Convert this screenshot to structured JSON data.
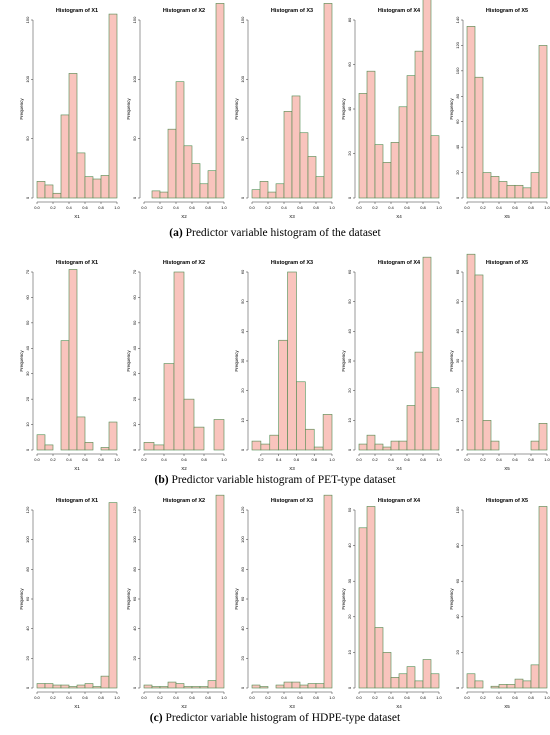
{
  "captions": [
    {
      "letter": "a",
      "text": "Predictor variable histogram of the dataset"
    },
    {
      "letter": "b",
      "text": "Predictor variable histogram of PET-type dataset"
    },
    {
      "letter": "c",
      "text": "Predictor variable histogram of HDPE-type dataset"
    }
  ],
  "style": {
    "bar_fill": "#f9c4bd",
    "bar_stroke": "#4f8a4f",
    "axis_color": "#333333"
  },
  "chart_data": [
    {
      "type": "bar",
      "title": "Histogram of X1",
      "xlabel": "X1",
      "ylabel": "Frequency",
      "bin_start": 0.0,
      "bin_width": 0.1,
      "xlim": [
        0,
        1
      ],
      "xticks": [
        0.0,
        0.2,
        0.4,
        0.6,
        0.8,
        1.0
      ],
      "xtick_labels": [
        "0.0",
        "0.2",
        "0.4",
        "0.6",
        "0.8",
        "1.0"
      ],
      "ylim": [
        0,
        150
      ],
      "yticks": [
        0,
        50,
        100,
        150
      ],
      "ytick_labels": [
        "0",
        "50",
        "100",
        "150"
      ],
      "values": [
        14,
        11,
        4,
        70,
        105,
        38,
        18,
        16,
        19,
        155
      ]
    },
    {
      "type": "bar",
      "title": "Histogram of X2",
      "xlabel": "X2",
      "ylabel": "Frequency",
      "bin_start": 0.0,
      "bin_width": 0.1,
      "xlim": [
        0,
        1
      ],
      "xticks": [
        0.0,
        0.2,
        0.4,
        0.6,
        0.8,
        1.0
      ],
      "xtick_labels": [
        "0.0",
        "0.2",
        "0.4",
        "0.6",
        "0.8",
        "1.0"
      ],
      "ylim": [
        0,
        150
      ],
      "yticks": [
        0,
        50,
        100,
        150
      ],
      "ytick_labels": [
        "0",
        "50",
        "100",
        "150"
      ],
      "values": [
        0,
        6,
        5,
        58,
        98,
        44,
        29,
        12,
        23,
        164
      ]
    },
    {
      "type": "bar",
      "title": "Histogram of X3",
      "xlabel": "X3",
      "ylabel": "Frequency",
      "bin_start": 0.0,
      "bin_width": 0.1,
      "xlim": [
        0,
        1
      ],
      "xticks": [
        0.0,
        0.2,
        0.4,
        0.6,
        0.8,
        1.0
      ],
      "xtick_labels": [
        "0.0",
        "0.2",
        "0.4",
        "0.6",
        "0.8",
        "1.0"
      ],
      "ylim": [
        0,
        150
      ],
      "yticks": [
        0,
        50,
        100,
        150
      ],
      "ytick_labels": [
        "0",
        "50",
        "100",
        "150"
      ],
      "values": [
        7,
        14,
        5,
        12,
        73,
        86,
        55,
        35,
        18,
        164
      ]
    },
    {
      "type": "bar",
      "title": "Histogram of X4",
      "xlabel": "X4",
      "ylabel": "Frequency",
      "bin_start": 0.0,
      "bin_width": 0.1,
      "xlim": [
        0,
        1
      ],
      "xticks": [
        0.0,
        0.2,
        0.4,
        0.6,
        0.8,
        1.0
      ],
      "xtick_labels": [
        "0.0",
        "0.2",
        "0.4",
        "0.6",
        "0.8",
        "1.0"
      ],
      "ylim": [
        0,
        80
      ],
      "yticks": [
        0,
        20,
        40,
        60,
        80
      ],
      "ytick_labels": [
        "0",
        "20",
        "40",
        "60",
        "80"
      ],
      "values": [
        47,
        57,
        24,
        16,
        25,
        41,
        55,
        66,
        90,
        28
      ]
    },
    {
      "type": "bar",
      "title": "Histogram of X5",
      "xlabel": "X5",
      "ylabel": "Frequency",
      "bin_start": 0.0,
      "bin_width": 0.1,
      "xlim": [
        0,
        1
      ],
      "xticks": [
        0.0,
        0.2,
        0.4,
        0.6,
        0.8,
        1.0
      ],
      "xtick_labels": [
        "0.0",
        "0.2",
        "0.4",
        "0.6",
        "0.8",
        "1.0"
      ],
      "ylim": [
        0,
        140
      ],
      "yticks": [
        0,
        20,
        40,
        60,
        80,
        100,
        120,
        140
      ],
      "ytick_labels": [
        "0",
        "20",
        "40",
        "60",
        "80",
        "100",
        "120",
        "140"
      ],
      "values": [
        135,
        95,
        20,
        17,
        13,
        10,
        10,
        8,
        20,
        120
      ]
    },
    {
      "type": "bar",
      "title": "Histogram of X1",
      "xlabel": "X1",
      "ylabel": "Frequency",
      "bin_start": 0.0,
      "bin_width": 0.1,
      "xlim": [
        0,
        1
      ],
      "xticks": [
        0.0,
        0.2,
        0.4,
        0.6,
        0.8,
        1.0
      ],
      "xtick_labels": [
        "0.0",
        "0.2",
        "0.4",
        "0.6",
        "0.8",
        "1.0"
      ],
      "ylim": [
        0,
        70
      ],
      "yticks": [
        0,
        10,
        20,
        30,
        40,
        50,
        60,
        70
      ],
      "ytick_labels": [
        "0",
        "10",
        "20",
        "30",
        "40",
        "50",
        "60",
        "70"
      ],
      "values": [
        6,
        2,
        0,
        43,
        71,
        13,
        3,
        0,
        1,
        11
      ]
    },
    {
      "type": "bar",
      "title": "Histogram of X2",
      "xlabel": "X2",
      "ylabel": "Frequency",
      "bin_start": 0.2,
      "bin_width": 0.1,
      "xlim": [
        0.2,
        1
      ],
      "xticks": [
        0.2,
        0.4,
        0.6,
        0.8,
        1.0
      ],
      "xtick_labels": [
        "0.2",
        "0.4",
        "0.6",
        "0.8",
        "1.0"
      ],
      "ylim": [
        0,
        70
      ],
      "yticks": [
        0,
        10,
        20,
        30,
        40,
        50,
        60,
        70
      ],
      "ytick_labels": [
        "0",
        "10",
        "20",
        "30",
        "40",
        "50",
        "60",
        "70"
      ],
      "values": [
        3,
        2,
        34,
        70,
        20,
        9,
        0,
        12
      ]
    },
    {
      "type": "bar",
      "title": "Histogram of X3",
      "xlabel": "X3",
      "ylabel": "Frequency",
      "bin_start": 0.1,
      "bin_width": 0.1,
      "xlim": [
        0.1,
        1
      ],
      "xticks": [
        0.2,
        0.4,
        0.6,
        0.8,
        1.0
      ],
      "xtick_labels": [
        "0.2",
        "0.4",
        "0.6",
        "0.8",
        "1.0"
      ],
      "ylim": [
        0,
        60
      ],
      "yticks": [
        0,
        10,
        20,
        30,
        40,
        50,
        60
      ],
      "ytick_labels": [
        "0",
        "10",
        "20",
        "30",
        "40",
        "50",
        "60"
      ],
      "values": [
        3,
        2,
        5,
        37,
        60,
        23,
        7,
        1,
        12
      ]
    },
    {
      "type": "bar",
      "title": "Histogram of X4",
      "xlabel": "X4",
      "ylabel": "Frequency",
      "bin_start": 0.0,
      "bin_width": 0.1,
      "xlim": [
        0,
        1
      ],
      "xticks": [
        0.0,
        0.2,
        0.4,
        0.6,
        0.8,
        1.0
      ],
      "xtick_labels": [
        "0.0",
        "0.2",
        "0.4",
        "0.6",
        "0.8",
        "1.0"
      ],
      "ylim": [
        0,
        60
      ],
      "yticks": [
        0,
        10,
        20,
        30,
        40,
        50,
        60
      ],
      "ytick_labels": [
        "0",
        "10",
        "20",
        "30",
        "40",
        "50",
        "60"
      ],
      "values": [
        2,
        5,
        2,
        1,
        3,
        3,
        15,
        33,
        65,
        21
      ]
    },
    {
      "type": "bar",
      "title": "Histogram of X5",
      "xlabel": "X5",
      "ylabel": "Frequency",
      "bin_start": 0.0,
      "bin_width": 0.1,
      "xlim": [
        0,
        1
      ],
      "xticks": [
        0.0,
        0.2,
        0.4,
        0.6,
        0.8,
        1.0
      ],
      "xtick_labels": [
        "0.0",
        "0.2",
        "0.4",
        "0.6",
        "0.8",
        "1.0"
      ],
      "ylim": [
        0,
        60
      ],
      "yticks": [
        0,
        10,
        20,
        30,
        40,
        50,
        60
      ],
      "ytick_labels": [
        "0",
        "10",
        "20",
        "30",
        "40",
        "50",
        "60"
      ],
      "values": [
        66,
        59,
        10,
        3,
        0,
        0,
        0,
        0,
        3,
        9
      ]
    },
    {
      "type": "bar",
      "title": "Histogram of X1",
      "xlabel": "X1",
      "ylabel": "Frequency",
      "bin_start": 0.0,
      "bin_width": 0.1,
      "xlim": [
        0,
        1
      ],
      "xticks": [
        0.0,
        0.2,
        0.4,
        0.6,
        0.8,
        1.0
      ],
      "xtick_labels": [
        "0.0",
        "0.2",
        "0.4",
        "0.6",
        "0.8",
        "1.0"
      ],
      "ylim": [
        0,
        120
      ],
      "yticks": [
        0,
        20,
        40,
        60,
        80,
        100,
        120
      ],
      "ytick_labels": [
        "0",
        "20",
        "40",
        "60",
        "80",
        "100",
        "120"
      ],
      "values": [
        3,
        3,
        2,
        2,
        1,
        2,
        3,
        1,
        8,
        125
      ]
    },
    {
      "type": "bar",
      "title": "Histogram of X2",
      "xlabel": "X2",
      "ylabel": "Frequency",
      "bin_start": 0.0,
      "bin_width": 0.1,
      "xlim": [
        0,
        1
      ],
      "xticks": [
        0.0,
        0.2,
        0.4,
        0.6,
        0.8,
        1.0
      ],
      "xtick_labels": [
        "0.0",
        "0.2",
        "0.4",
        "0.6",
        "0.8",
        "1.0"
      ],
      "ylim": [
        0,
        120
      ],
      "yticks": [
        0,
        20,
        40,
        60,
        80,
        100,
        120
      ],
      "ytick_labels": [
        "0",
        "20",
        "40",
        "60",
        "80",
        "100",
        "120"
      ],
      "values": [
        2,
        1,
        1,
        4,
        3,
        1,
        1,
        1,
        5,
        130
      ]
    },
    {
      "type": "bar",
      "title": "Histogram of X3",
      "xlabel": "X3",
      "ylabel": "Frequency",
      "bin_start": 0.0,
      "bin_width": 0.1,
      "xlim": [
        0,
        1
      ],
      "xticks": [
        0.0,
        0.2,
        0.4,
        0.6,
        0.8,
        1.0
      ],
      "xtick_labels": [
        "0.0",
        "0.2",
        "0.4",
        "0.6",
        "0.8",
        "1.0"
      ],
      "ylim": [
        0,
        120
      ],
      "yticks": [
        0,
        20,
        40,
        60,
        80,
        100,
        120
      ],
      "ytick_labels": [
        "0",
        "20",
        "40",
        "60",
        "80",
        "100",
        "120"
      ],
      "values": [
        2,
        1,
        0,
        2,
        4,
        4,
        2,
        3,
        3,
        130
      ]
    },
    {
      "type": "bar",
      "title": "Histogram of X4",
      "xlabel": "X4",
      "ylabel": "Frequency",
      "bin_start": 0.0,
      "bin_width": 0.1,
      "xlim": [
        0,
        1
      ],
      "xticks": [
        0.0,
        0.2,
        0.4,
        0.6,
        0.8,
        1.0
      ],
      "xtick_labels": [
        "0.0",
        "0.2",
        "0.4",
        "0.6",
        "0.8",
        "1.0"
      ],
      "ylim": [
        0,
        50
      ],
      "yticks": [
        0,
        10,
        20,
        30,
        40,
        50
      ],
      "ytick_labels": [
        "0",
        "10",
        "20",
        "30",
        "40",
        "50"
      ],
      "values": [
        45,
        51,
        17,
        10,
        3,
        4,
        6,
        2,
        8,
        4
      ]
    },
    {
      "type": "bar",
      "title": "Histogram of X5",
      "xlabel": "X5",
      "ylabel": "Frequency",
      "bin_start": 0.0,
      "bin_width": 0.1,
      "xlim": [
        0,
        1
      ],
      "xticks": [
        0.0,
        0.2,
        0.4,
        0.6,
        0.8,
        1.0
      ],
      "xtick_labels": [
        "0.0",
        "0.2",
        "0.4",
        "0.6",
        "0.8",
        "1.0"
      ],
      "ylim": [
        0,
        100
      ],
      "yticks": [
        0,
        20,
        40,
        60,
        80,
        100
      ],
      "ytick_labels": [
        "0",
        "20",
        "40",
        "60",
        "80",
        "100"
      ],
      "values": [
        8,
        4,
        0,
        1,
        2,
        2,
        5,
        4,
        13,
        102
      ]
    }
  ]
}
